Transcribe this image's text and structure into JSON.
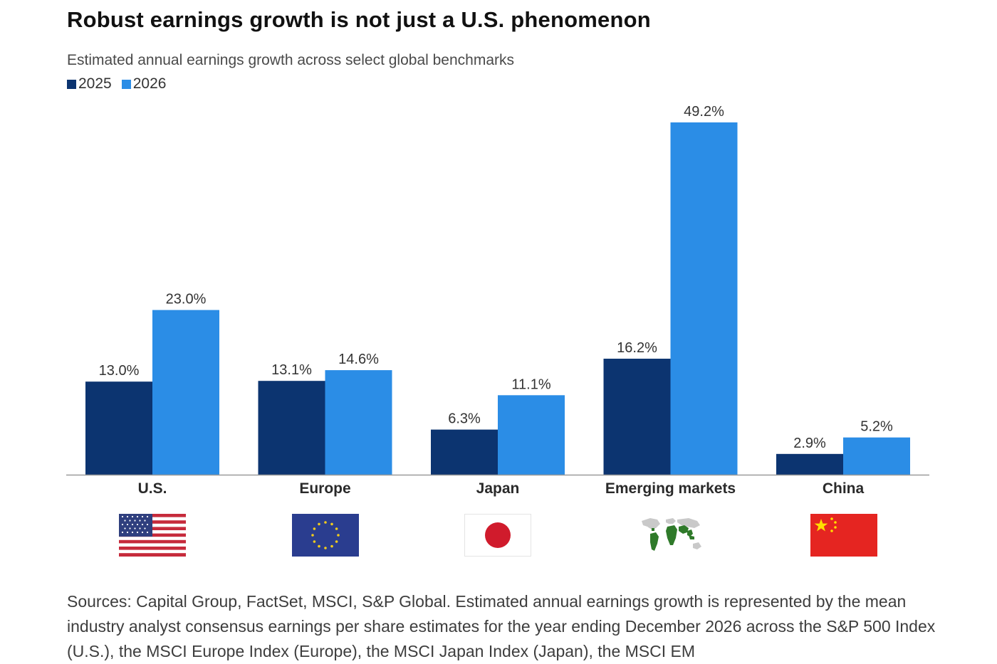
{
  "chart_data": {
    "type": "bar",
    "title": "Robust earnings growth is not just a U.S. phenomenon",
    "subtitle": "Estimated annual earnings growth across select global benchmarks",
    "categories": [
      "U.S.",
      "Europe",
      "Japan",
      "Emerging markets",
      "China"
    ],
    "series": [
      {
        "name": "2025",
        "color": "#0c3470",
        "values": [
          13.0,
          13.1,
          6.3,
          16.2,
          2.9
        ],
        "labels": [
          "13.0%",
          "13.1%",
          "6.3%",
          "16.2%",
          "2.9%"
        ]
      },
      {
        "name": "2026",
        "color": "#2b8de6",
        "values": [
          23.0,
          14.6,
          11.1,
          49.2,
          5.2
        ],
        "labels": [
          "23.0%",
          "14.6%",
          "11.1%",
          "49.2%",
          "5.2%"
        ]
      }
    ],
    "ylim": [
      0,
      49.2
    ],
    "grid": false,
    "legend_position": "top-left"
  },
  "flags": [
    {
      "icon": "us-flag-icon"
    },
    {
      "icon": "eu-flag-icon"
    },
    {
      "icon": "japan-flag-icon"
    },
    {
      "icon": "world-map-icon"
    },
    {
      "icon": "china-flag-icon"
    }
  ],
  "sources": "Sources: Capital Group, FactSet, MSCI, S&P Global. Estimated annual earnings growth is represented by the mean industry analyst consensus earnings per share estimates for the year ending December 2026 across the S&P 500 Index (U.S.), the MSCI Europe Index (Europe), the MSCI Japan Index (Japan), the MSCI EM"
}
